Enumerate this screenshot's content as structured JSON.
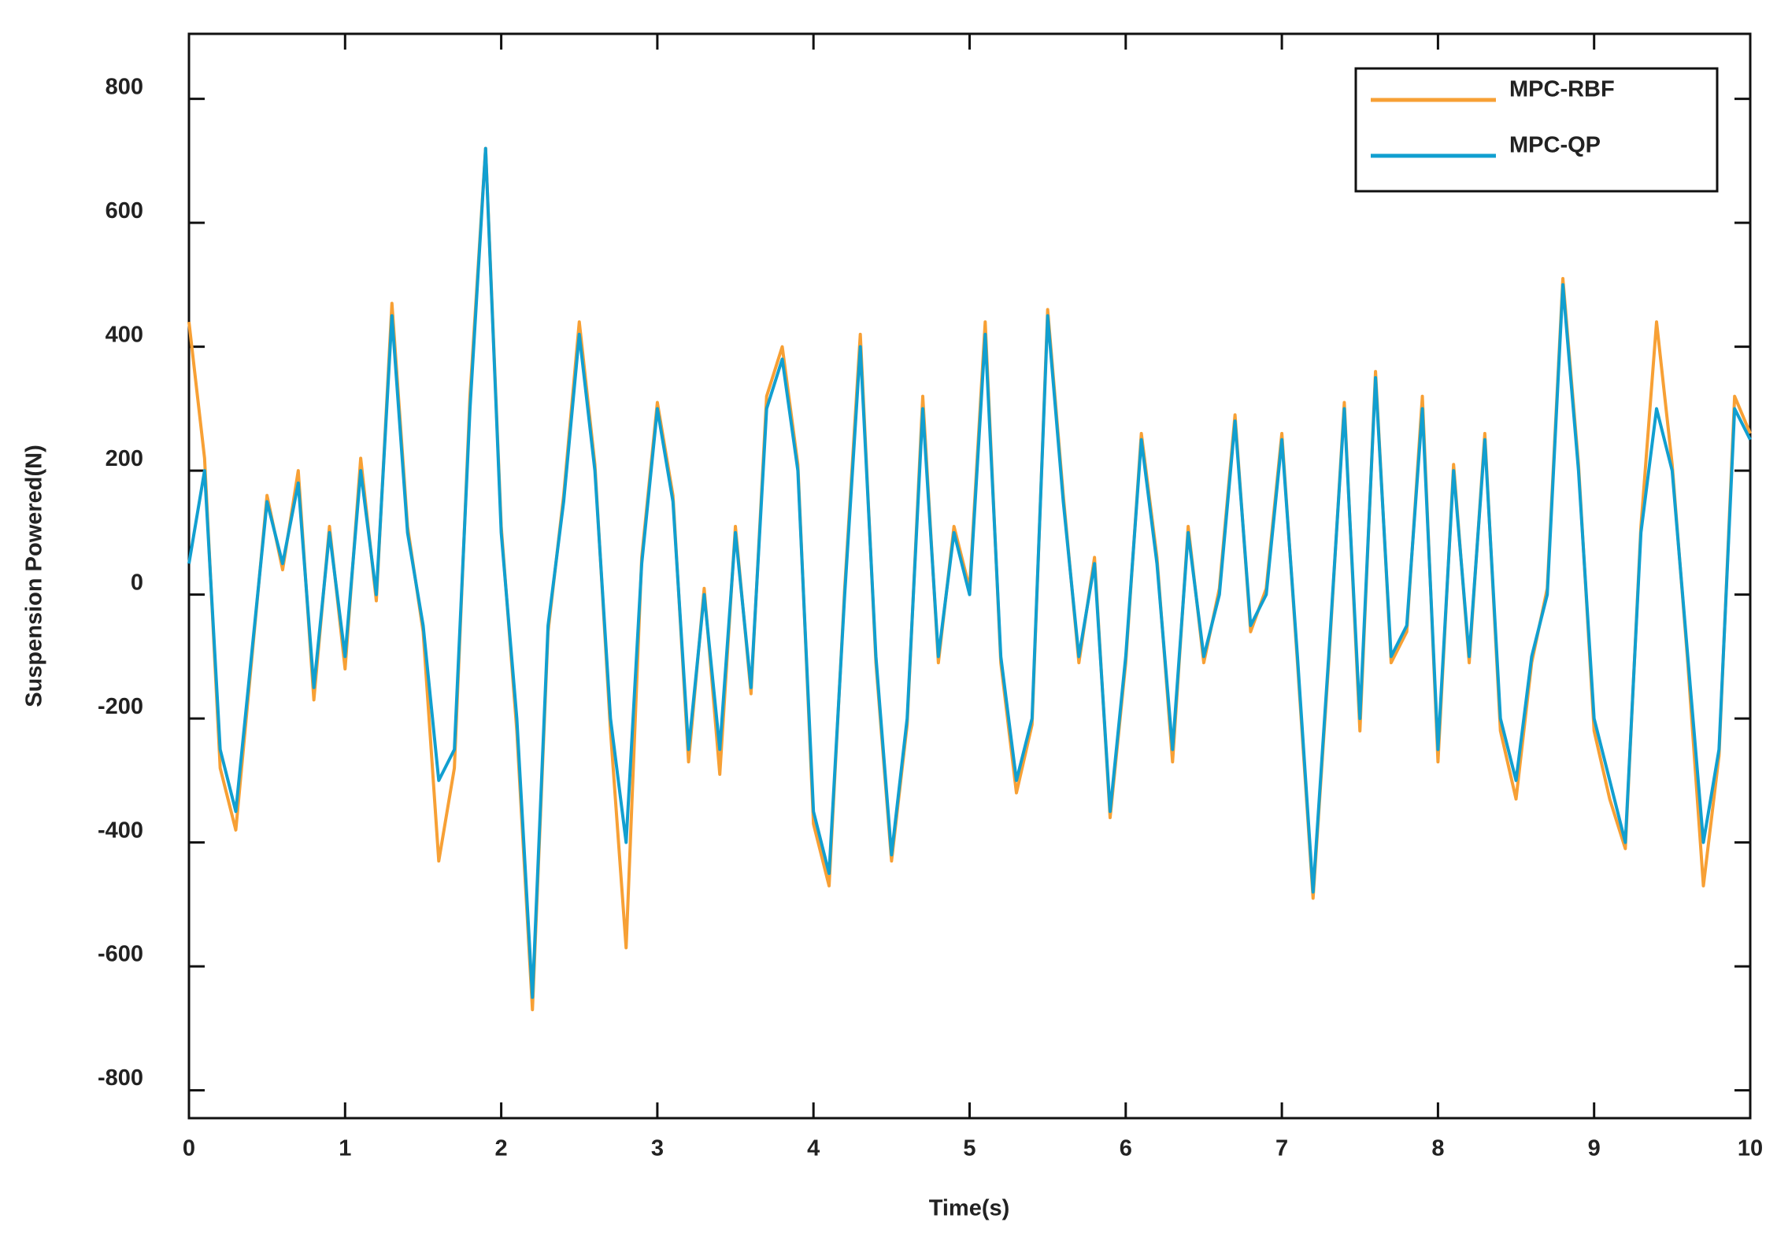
{
  "chart_data": {
    "type": "line",
    "x_label": "Time(s)",
    "y_label": "Suspension Powered(N)",
    "x": [
      0,
      0.1,
      0.2,
      0.3,
      0.4,
      0.5,
      0.6,
      0.7,
      0.8,
      0.9,
      1,
      1.1,
      1.2,
      1.3,
      1.4,
      1.5,
      1.6,
      1.7,
      1.8,
      1.9,
      2,
      2.1,
      2.2,
      2.3,
      2.4,
      2.5,
      2.6,
      2.7,
      2.8,
      2.9,
      3,
      3.1,
      3.2,
      3.3,
      3.4,
      3.5,
      3.6,
      3.7,
      3.8,
      3.9,
      4,
      4.1,
      4.2,
      4.3,
      4.4,
      4.5,
      4.6,
      4.7,
      4.8,
      4.9,
      5,
      5.1,
      5.2,
      5.3,
      5.4,
      5.5,
      5.6,
      5.7,
      5.8,
      5.9,
      6,
      6.1,
      6.2,
      6.3,
      6.4,
      6.5,
      6.6,
      6.7,
      6.8,
      6.9,
      7,
      7.1,
      7.2,
      7.3,
      7.4,
      7.5,
      7.6,
      7.7,
      7.8,
      7.9,
      8,
      8.1,
      8.2,
      8.3,
      8.4,
      8.5,
      8.6,
      8.7,
      8.8,
      8.9,
      9,
      9.1,
      9.2,
      9.3,
      9.4,
      9.5,
      9.6,
      9.7,
      9.8,
      9.9,
      10
    ],
    "series": [
      {
        "name": "MPC-RBF",
        "color": "#f7a035",
        "values": [
          440,
          220,
          -280,
          -380,
          -110,
          160,
          40,
          200,
          -170,
          110,
          -120,
          220,
          -10,
          470,
          110,
          -60,
          -430,
          -280,
          320,
          720,
          110,
          -220,
          -670,
          -60,
          160,
          440,
          210,
          -220,
          -570,
          60,
          310,
          160,
          -270,
          10,
          -290,
          110,
          -160,
          320,
          400,
          210,
          -370,
          -470,
          10,
          420,
          -110,
          -430,
          -210,
          320,
          -110,
          110,
          10,
          440,
          -110,
          -320,
          -210,
          460,
          160,
          -110,
          60,
          -360,
          -110,
          260,
          60,
          -270,
          110,
          -110,
          10,
          290,
          -60,
          10,
          260,
          -110,
          -490,
          -110,
          310,
          -220,
          360,
          -110,
          -60,
          320,
          -270,
          210,
          -110,
          260,
          -220,
          -330,
          -110,
          10,
          510,
          210,
          -220,
          -330,
          -410,
          110,
          440,
          210,
          -110,
          -470,
          -260,
          320,
          260
        ]
      },
      {
        "name": "MPC-QP",
        "color": "#119fd0",
        "values": [
          50,
          200,
          -250,
          -350,
          -100,
          150,
          50,
          180,
          -150,
          100,
          -100,
          200,
          0,
          450,
          100,
          -50,
          -300,
          -250,
          300,
          720,
          100,
          -200,
          -650,
          -50,
          150,
          420,
          200,
          -200,
          -400,
          50,
          300,
          150,
          -250,
          0,
          -250,
          100,
          -150,
          300,
          380,
          200,
          -350,
          -450,
          0,
          400,
          -100,
          -420,
          -200,
          300,
          -100,
          100,
          0,
          420,
          -100,
          -300,
          -200,
          450,
          150,
          -100,
          50,
          -350,
          -100,
          250,
          50,
          -250,
          100,
          -100,
          0,
          280,
          -50,
          0,
          250,
          -100,
          -480,
          -100,
          300,
          -200,
          350,
          -100,
          -50,
          300,
          -250,
          200,
          -100,
          250,
          -200,
          -300,
          -100,
          0,
          500,
          200,
          -200,
          -300,
          -400,
          100,
          300,
          200,
          -100,
          -400,
          -250,
          300,
          250
        ]
      }
    ],
    "xlim": [
      0,
      10
    ],
    "xticks": [
      0,
      1,
      2,
      3,
      4,
      5,
      6,
      7,
      8,
      9,
      10
    ],
    "ylim": [
      -845,
      905
    ],
    "yticks": [
      -800,
      -600,
      -400,
      -200,
      0,
      200,
      400,
      600,
      800
    ],
    "grid": false,
    "legend": "upper right"
  }
}
